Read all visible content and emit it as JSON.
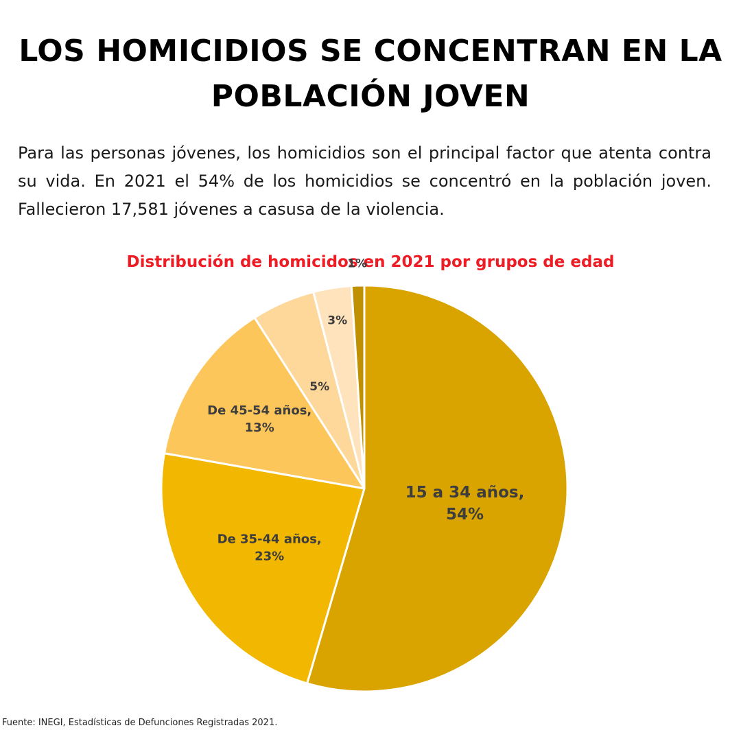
{
  "header": {
    "title": "LOS HOMICIDIOS SE CONCENTRAN EN LA POBLACIÓN JOVEN",
    "intro": "Para las personas jóvenes, los homicidios son el principal factor que atenta contra su vida. En 2021 el 54% de los homicidios se concentró en la población joven. Fallecieron 17,581 jóvenes a casusa de la violencia."
  },
  "chart_data": {
    "type": "pie",
    "title": "Distribución de homicidos en 2021 por grupos de edad",
    "title_color": "#ee1c24",
    "start_angle_deg": 0,
    "direction": "clockwise",
    "slices": [
      {
        "label": "15 a 34 años, 54%",
        "category": "15 a 34 años",
        "value": 54,
        "color": "#d9a400"
      },
      {
        "label": "De 35-44 años, 23%",
        "category": "De 35-44 años",
        "value": 23,
        "color": "#f2b700"
      },
      {
        "label": "De 45-54 años, 13%",
        "category": "De 45-54 años",
        "value": 13,
        "color": "#fdc65a"
      },
      {
        "label": "5%",
        "category": "",
        "value": 5,
        "color": "#fed89a"
      },
      {
        "label": "3%",
        "category": "",
        "value": 3,
        "color": "#fee3bd"
      },
      {
        "label": "1%",
        "category": "",
        "value": 1,
        "color": "#bf9000"
      }
    ]
  },
  "footer": {
    "source": "Fuente: INEGI, Estadísticas de Defunciones Registradas 2021."
  }
}
